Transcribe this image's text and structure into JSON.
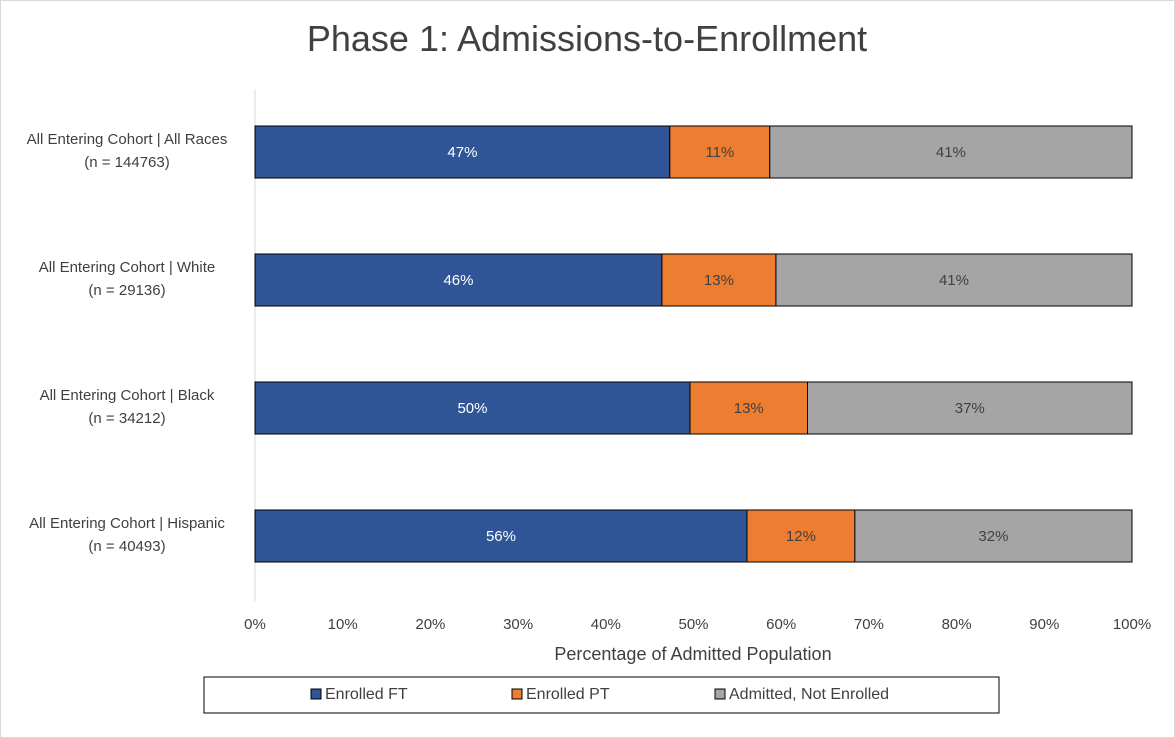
{
  "chart_data": {
    "type": "bar",
    "orientation": "horizontal",
    "stacked": "100%",
    "title": "Phase 1: Admissions-to-Enrollment",
    "xlabel": "Percentage of Admitted Population",
    "ylabel": "",
    "xlim": [
      0,
      100
    ],
    "x_ticks": [
      "0%",
      "10%",
      "20%",
      "30%",
      "40%",
      "50%",
      "60%",
      "70%",
      "80%",
      "90%",
      "100%"
    ],
    "categories": [
      {
        "line1": "All Entering Cohort | All Races",
        "line2": "(n = 144763)"
      },
      {
        "line1": "All Entering Cohort | White",
        "line2": "(n = 29136)"
      },
      {
        "line1": "All Entering Cohort | Black",
        "line2": "(n = 34212)"
      },
      {
        "line1": "All Entering Cohort | Hispanic",
        "line2": "(n = 40493)"
      }
    ],
    "series": [
      {
        "name": "Enrolled FT",
        "color": "#2f5597",
        "label_color": "#ffffff",
        "values": [
          47.3,
          46.4,
          49.6,
          56.1
        ],
        "labels": [
          "47%",
          "46%",
          "50%",
          "56%"
        ]
      },
      {
        "name": "Enrolled PT",
        "color": "#ed7d31",
        "label_color": "#404040",
        "values": [
          11.4,
          13.0,
          13.4,
          12.3
        ],
        "labels": [
          "11%",
          "13%",
          "13%",
          "12%"
        ]
      },
      {
        "name": "Admitted, Not Enrolled",
        "color": "#a5a5a5",
        "label_color": "#404040",
        "values": [
          41.3,
          40.6,
          37.0,
          31.6
        ],
        "labels": [
          "41%",
          "41%",
          "37%",
          "32%"
        ]
      }
    ],
    "legend_position": "bottom",
    "grid": false
  }
}
